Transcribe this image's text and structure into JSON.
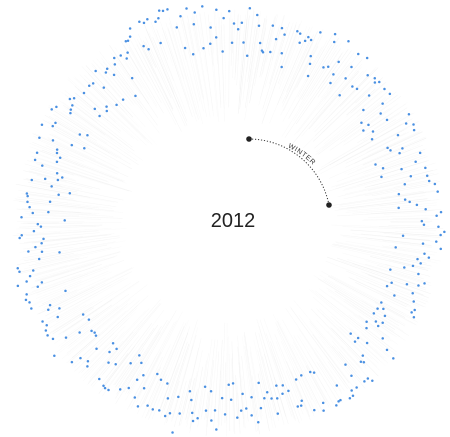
{
  "chart_data": {
    "type": "scatter",
    "coordinate_system": "polar",
    "year_label": "2012",
    "season_label": "WINTER",
    "colors": {
      "points": "#4a90e2",
      "spokes": "#e7e7e7",
      "arc": "#333333",
      "markers": "#222222",
      "text": "#222222"
    }
  }
}
